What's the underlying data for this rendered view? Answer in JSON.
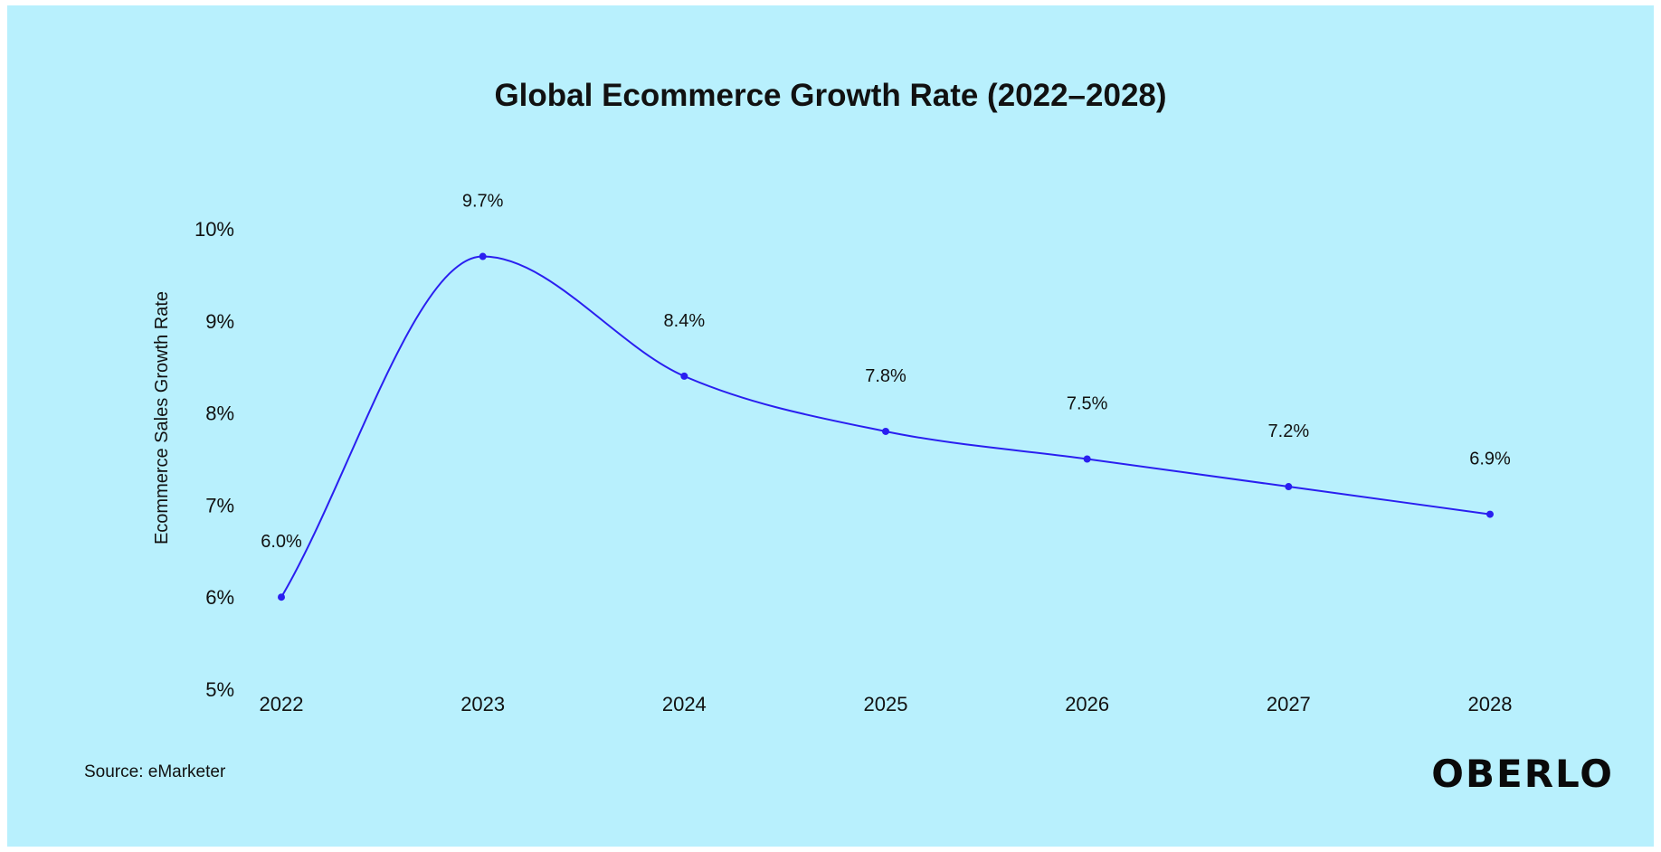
{
  "chart_data": {
    "type": "line",
    "title": "Global Ecommerce Growth Rate (2022–2028)",
    "xlabel": "",
    "ylabel": "Ecommerce Sales Growth Rate",
    "x": [
      "2022",
      "2023",
      "2024",
      "2025",
      "2026",
      "2027",
      "2028"
    ],
    "series": [
      {
        "values": [
          6.0,
          9.7,
          8.4,
          7.8,
          7.5,
          7.2,
          6.9
        ],
        "labels": [
          "6.0%",
          "9.7%",
          "8.4%",
          "7.8%",
          "7.5%",
          "7.2%",
          "6.9%"
        ]
      }
    ],
    "yticks": [
      5,
      6,
      7,
      8,
      9,
      10
    ],
    "ytick_labels": [
      "5%",
      "6%",
      "7%",
      "8%",
      "9%",
      "10%"
    ],
    "ylim": [
      5,
      10
    ],
    "grid": false,
    "line_color": "#2a1ff0",
    "background_color": "#b8f0fd"
  },
  "footer": {
    "source": "Source: eMarketer",
    "logo": "OBERLO"
  }
}
